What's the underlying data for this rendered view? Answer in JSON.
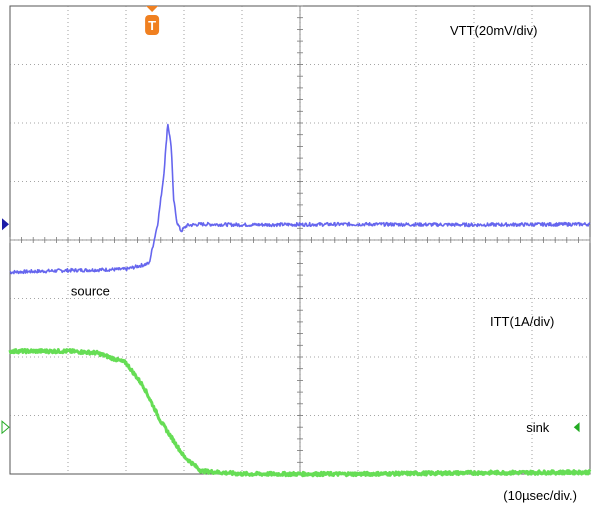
{
  "chart_data": {
    "type": "line",
    "grid": true,
    "x_axis": {
      "divisions": 10,
      "time_per_div_label": "(10µsec/div.)"
    },
    "y_axis": {
      "divisions": 8
    },
    "trigger": {
      "marker_label": "T",
      "color": "#f08020"
    },
    "series": [
      {
        "name": "VTT(20mV/div)",
        "color": "#6666ee",
        "marker_color": "#1c1ca8",
        "x_div": [
          0,
          1,
          2,
          2.4,
          2.55,
          2.65,
          2.72,
          2.78,
          2.82,
          2.88,
          2.95,
          3.05,
          3.3,
          4,
          6,
          8,
          10
        ],
        "y_div": [
          -0.55,
          -0.52,
          -0.5,
          -0.4,
          0.3,
          1.1,
          2.0,
          1.6,
          0.7,
          0.3,
          0.15,
          0.25,
          0.27,
          0.26,
          0.27,
          0.26,
          0.27
        ]
      },
      {
        "name": "ITT(1A/div)",
        "color": "#66dd55",
        "marker_color": "#22aa22",
        "x_div": [
          0,
          1,
          1.5,
          2,
          2.3,
          2.6,
          3,
          3.3,
          4,
          6,
          8,
          10
        ],
        "y_div": [
          -1.9,
          -1.9,
          -1.93,
          -2.1,
          -2.5,
          -3.1,
          -3.7,
          -3.95,
          -4.0,
          -4.0,
          -3.98,
          -3.97
        ]
      }
    ],
    "annotations": [
      {
        "text": "source",
        "x_div": 1.05,
        "y_div": -0.95
      },
      {
        "text": "sink",
        "x_div": 8.9,
        "y_div": -3.2
      }
    ]
  }
}
